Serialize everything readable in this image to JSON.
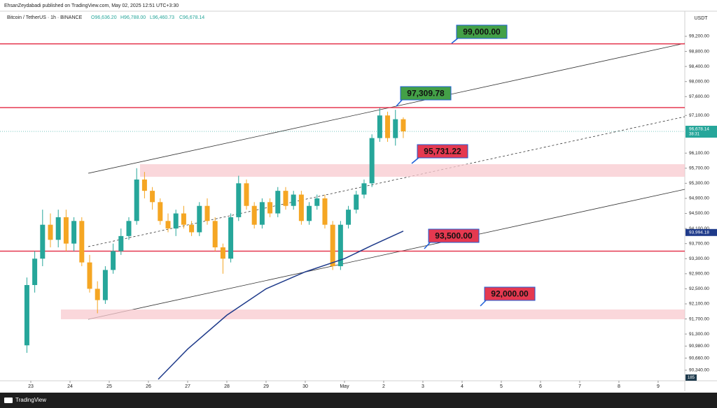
{
  "chart_data": {
    "type": "candlestick",
    "publisher": "EhsanZeydabadi published on TradingView.com, May 02, 2025 12:51 UTC+3:30",
    "symbol": "Bitcoin / TetherUS · 1h · BINANCE",
    "ohlc_header": [
      "O96,636.20",
      "H96,788.00",
      "L96,460.73",
      "C96,678.14"
    ],
    "currency": "USDT",
    "brand": "TradingView",
    "up_color": "#26a69a",
    "down_color": "#f5a623",
    "ylim": [
      90060,
      99515
    ],
    "yticks": [
      {
        "value": 99200,
        "label": "99,200.00"
      },
      {
        "value": 98800,
        "label": "98,800.00"
      },
      {
        "value": 98400,
        "label": "98,400.00"
      },
      {
        "value": 98000,
        "label": "98,000.00"
      },
      {
        "value": 97600,
        "label": "97,600.00"
      },
      {
        "value": 97100,
        "label": "97,100.00"
      },
      {
        "value": 96100,
        "label": "96,100.00"
      },
      {
        "value": 95700,
        "label": "95,700.00"
      },
      {
        "value": 95300,
        "label": "95,300.00"
      },
      {
        "value": 94900,
        "label": "94,900.00"
      },
      {
        "value": 94500,
        "label": "94,500.00"
      },
      {
        "value": 94100,
        "label": "94,100.00"
      },
      {
        "value": 93700,
        "label": "93,700.00"
      },
      {
        "value": 93300,
        "label": "93,300.00"
      },
      {
        "value": 92900,
        "label": "92,900.00"
      },
      {
        "value": 92500,
        "label": "92,500.00"
      },
      {
        "value": 92100,
        "label": "92,100.00"
      },
      {
        "value": 91700,
        "label": "91,700.00"
      },
      {
        "value": 91300,
        "label": "91,300.00"
      },
      {
        "value": 90980,
        "label": "90,980.00"
      },
      {
        "value": 90660,
        "label": "90,660.00"
      },
      {
        "value": 90340,
        "label": "90,340.00"
      }
    ],
    "xlim": [
      -0.786,
      16.68
    ],
    "xticks": [
      {
        "value": 0,
        "label": "23"
      },
      {
        "value": 1,
        "label": "24"
      },
      {
        "value": 2,
        "label": "25"
      },
      {
        "value": 3,
        "label": "26"
      },
      {
        "value": 4,
        "label": "27"
      },
      {
        "value": 5,
        "label": "28"
      },
      {
        "value": 6,
        "label": "29"
      },
      {
        "value": 7,
        "label": "30"
      },
      {
        "value": 8,
        "label": "May"
      },
      {
        "value": 9,
        "label": "2"
      },
      {
        "value": 10,
        "label": "3"
      },
      {
        "value": 11,
        "label": "4"
      },
      {
        "value": 12,
        "label": "5"
      },
      {
        "value": 13,
        "label": "6"
      },
      {
        "value": 14,
        "label": "7"
      },
      {
        "value": 15,
        "label": "8"
      },
      {
        "value": 16,
        "label": "9"
      }
    ],
    "x": [
      -0.1,
      0.1,
      0.3,
      0.5,
      0.7,
      0.9,
      1.1,
      1.3,
      1.5,
      1.7,
      1.9,
      2.1,
      2.3,
      2.5,
      2.7,
      2.9,
      3.1,
      3.3,
      3.5,
      3.7,
      3.9,
      4.1,
      4.3,
      4.5,
      4.7,
      4.9,
      5.1,
      5.3,
      5.5,
      5.7,
      5.9,
      6.1,
      6.3,
      6.5,
      6.7,
      6.9,
      7.1,
      7.3,
      7.5,
      7.7,
      7.9,
      8.1,
      8.3,
      8.5,
      8.7,
      8.9,
      9.1,
      9.3,
      9.5
    ],
    "open": [
      91000,
      92600,
      93300,
      94200,
      93800,
      94400,
      93700,
      94300,
      93200,
      92500,
      92200,
      93000,
      93500,
      93900,
      94300,
      95400,
      95100,
      94800,
      94300,
      94100,
      94500,
      94200,
      94000,
      94700,
      94300,
      93600,
      93300,
      94400,
      95300,
      94700,
      94200,
      94800,
      94500,
      95100,
      94700,
      95000,
      94300,
      94700,
      94900,
      94200,
      93100,
      94200,
      94600,
      95000,
      95300,
      96500,
      97100,
      96500,
      97000
    ],
    "high": [
      92800,
      93500,
      94600,
      94500,
      94600,
      94600,
      94400,
      94400,
      93400,
      92700,
      93100,
      93700,
      94100,
      94400,
      95700,
      95600,
      95200,
      94900,
      94500,
      94600,
      94700,
      94300,
      94800,
      94900,
      94400,
      93700,
      94500,
      95500,
      95400,
      94800,
      94900,
      94900,
      95200,
      95200,
      95100,
      95100,
      94800,
      95000,
      95000,
      94300,
      94300,
      94700,
      95100,
      95400,
      96600,
      97300,
      97200,
      97250,
      97050
    ],
    "low": [
      90800,
      92400,
      93100,
      93600,
      93600,
      93500,
      93500,
      93100,
      92400,
      91850,
      92100,
      92900,
      93400,
      93800,
      94200,
      94900,
      94600,
      94200,
      94000,
      93900,
      94100,
      93900,
      93900,
      94200,
      93500,
      92900,
      93200,
      94300,
      94600,
      94100,
      94100,
      94400,
      94400,
      94600,
      94600,
      94200,
      94200,
      94600,
      94100,
      93000,
      93000,
      94100,
      94500,
      94900,
      95200,
      96400,
      96400,
      96300,
      96500
    ],
    "close": [
      92600,
      93300,
      94200,
      93800,
      94400,
      93700,
      94300,
      93200,
      92500,
      92200,
      93000,
      93500,
      93900,
      94300,
      95400,
      95100,
      94800,
      94300,
      94100,
      94500,
      94200,
      94000,
      94700,
      94300,
      93600,
      93300,
      94400,
      95300,
      94700,
      94200,
      94800,
      94500,
      95100,
      94700,
      95000,
      94300,
      94700,
      94900,
      94200,
      93100,
      94200,
      94600,
      95000,
      95300,
      96500,
      97100,
      96500,
      97000,
      96678
    ],
    "ma": {
      "color": "#1e3a8a",
      "x": [
        3.25,
        4,
        5,
        6,
        7,
        8,
        8.7,
        9.5
      ],
      "values": [
        90100,
        90900,
        91800,
        92500,
        92950,
        93300,
        93650,
        94030
      ]
    },
    "zones": [
      [
        95473,
        95807
      ],
      [
        91692,
        91951
      ]
    ],
    "levels": [
      {
        "value": 99000,
        "label": "99,000.00",
        "color": "#43a047",
        "hline": true
      },
      {
        "value": 97309.78,
        "label": "97,309.78",
        "color": "#43a047",
        "hline": true
      },
      {
        "value": 95731.22,
        "label": "95,731.22",
        "color": "#e53950",
        "hline": false
      },
      {
        "value": 93500,
        "label": "93,500.00",
        "color": "#e53950",
        "hline": true
      },
      {
        "value": 92000,
        "label": "92,000.00",
        "color": "#e53950",
        "hline": false
      }
    ],
    "price_tag": {
      "value": 96678.14,
      "label": "96,678.14"
    },
    "countdown": "38:31",
    "ma_tag": {
      "value": 93994.18,
      "label": "93,994.18"
    },
    "volume_tag": "185"
  }
}
